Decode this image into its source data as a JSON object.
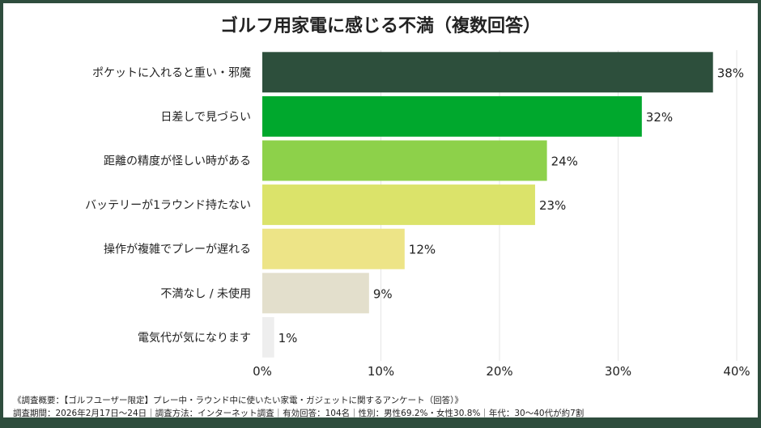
{
  "chart_data": {
    "type": "bar",
    "orientation": "horizontal",
    "title": "ゴルフ用家電に感じる不満（複数回答）",
    "categories": [
      "ポケットに入れると重い・邪魔",
      "日差しで見づらい",
      "距離の精度が怪しい時がある",
      "バッテリーが1ラウンド持たない",
      "操作が複雑でプレーが遅れる",
      "不満なし / 未使用",
      "電気代が気になります"
    ],
    "values": [
      38,
      32,
      24,
      23,
      12,
      9,
      1
    ],
    "value_labels": [
      "38%",
      "32%",
      "24%",
      "23%",
      "12%",
      "9%",
      "1%"
    ],
    "colors": [
      "#2d4f3c",
      "#00a82d",
      "#8dd14a",
      "#dbe36a",
      "#ede487",
      "#e3dfcc",
      "#eeeeee"
    ],
    "xlim": [
      0,
      40
    ],
    "xticks": [
      0,
      10,
      20,
      30,
      40
    ],
    "xtick_labels": [
      "0%",
      "10%",
      "20%",
      "30%",
      "40%"
    ],
    "grid": "vertical",
    "xlabel": "",
    "ylabel": ""
  },
  "footer": {
    "line1": "《調査概要：【ゴルフユーザー限定】プレー中・ラウンド中に使いたい家電・ガジェットに関するアンケート（回答）》",
    "line2": "調査期間：2026年2月17日〜24日｜調査方法：インターネット調査｜有効回答：104名｜性別：男性69.2%・女性30.8%｜年代：30〜40代が約7割"
  },
  "colors": {
    "frame": "#2e4d3d"
  }
}
